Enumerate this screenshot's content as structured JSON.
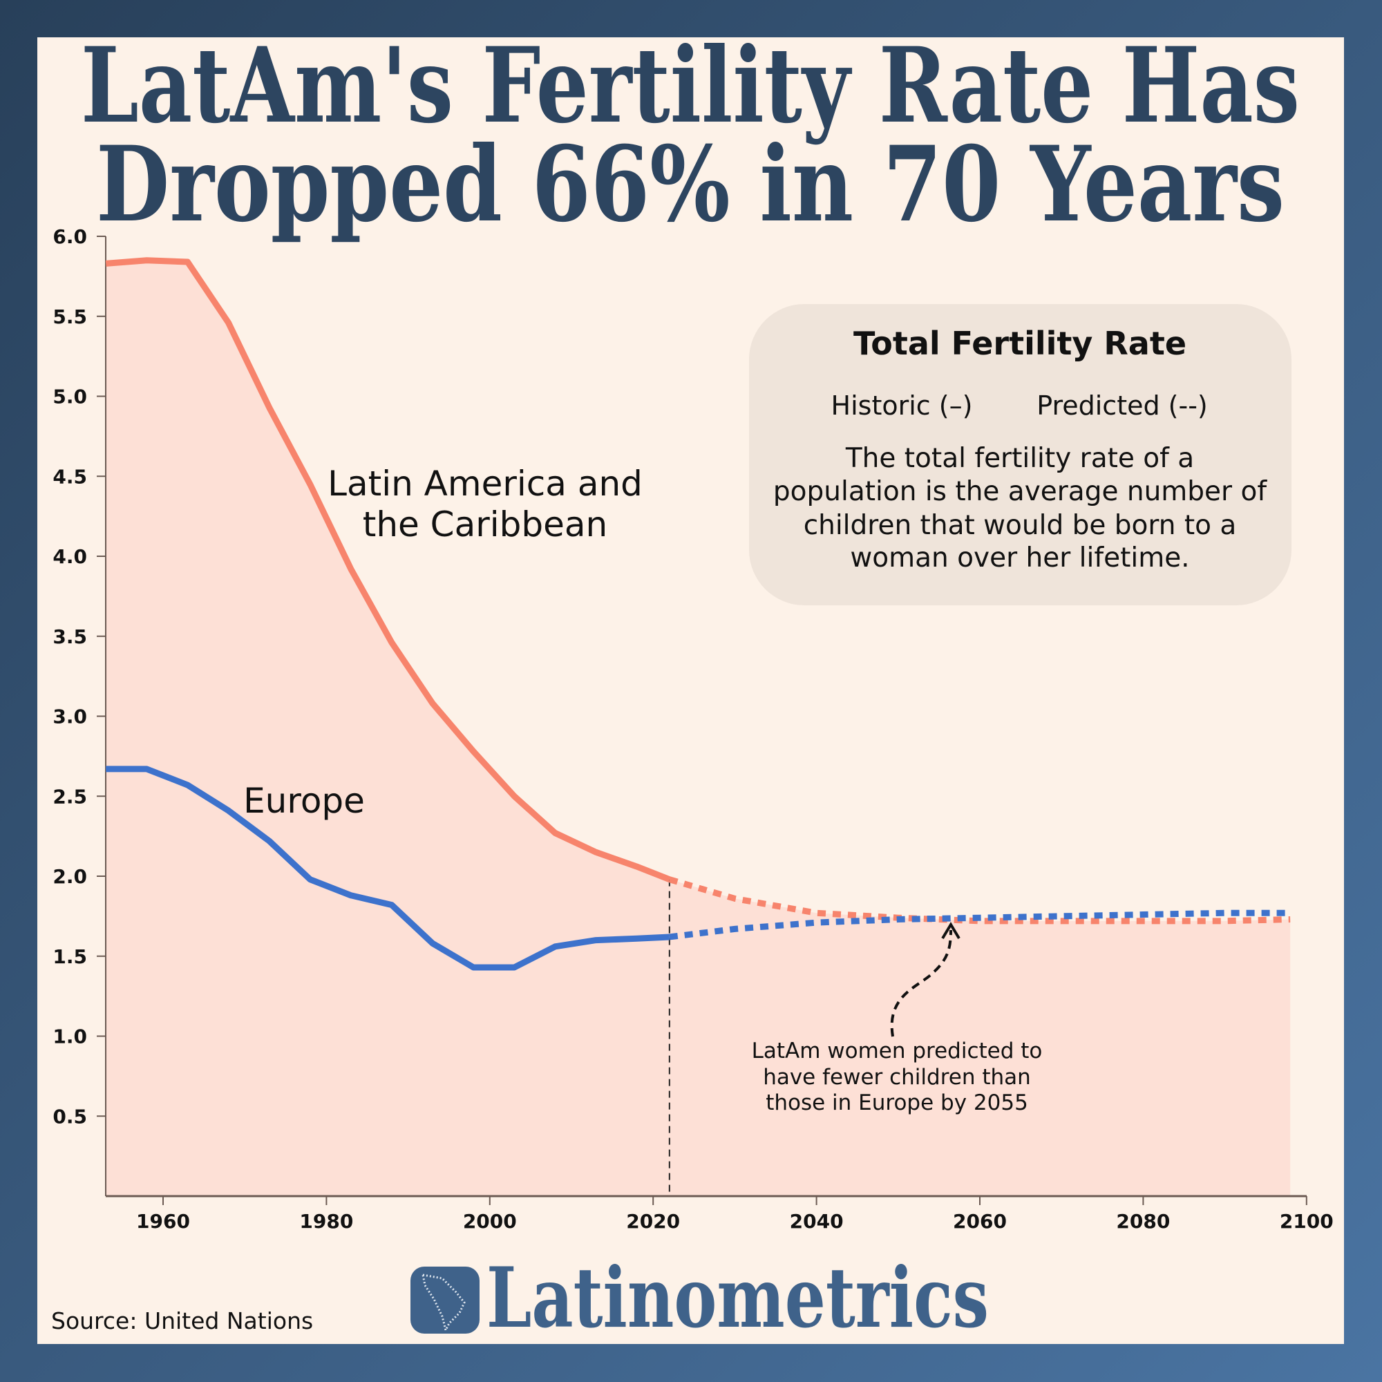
{
  "title": {
    "line1": "LatAm's Fertility Rate Has",
    "line2": "Dropped 66% in 70 Years"
  },
  "legend": {
    "heading": "Total Fertility Rate",
    "historic": "Historic (–)",
    "predicted": "Predicted (--)",
    "description": [
      "The total fertility rate of a",
      "population is the average number of",
      "children that would be born to a",
      "woman over her lifetime."
    ]
  },
  "annotation": {
    "lines": [
      "LatAm women predicted to",
      "have fewer children than",
      "those in Europe by 2055"
    ],
    "icon": "curved-arrow-icon"
  },
  "source": "Source: United Nations",
  "brand": {
    "name": "Latinometrics",
    "icon": "latin-america-map-icon"
  },
  "colors": {
    "latam": "#f7846c",
    "latam_fill": "#fde0d6",
    "europe": "#3d72cc",
    "title": "#2d4560",
    "panel": "#fdf2e8",
    "legend_bg": "#efe4da"
  },
  "chart_data": {
    "type": "line",
    "xlim": [
      1953,
      2100
    ],
    "ylim": [
      0,
      6
    ],
    "x_ticks": [
      "1960",
      "1980",
      "2000",
      "2020",
      "2040",
      "2060",
      "2080",
      "2100"
    ],
    "y_ticks": [
      "0.5",
      "1.0",
      "1.5",
      "2.0",
      "2.5",
      "3.0",
      "3.5",
      "4.0",
      "4.5",
      "5.0",
      "5.5",
      "6.0"
    ],
    "divider_year": 2022,
    "series": [
      {
        "name": "Latin America and the Caribbean",
        "label_lines": [
          "Latin America and",
          "the Caribbean"
        ],
        "historic": {
          "x": [
            1953,
            1958,
            1963,
            1968,
            1973,
            1978,
            1983,
            1988,
            1993,
            1998,
            2003,
            2008,
            2013,
            2018,
            2022
          ],
          "y": [
            5.83,
            5.85,
            5.84,
            5.46,
            4.93,
            4.45,
            3.92,
            3.46,
            3.08,
            2.78,
            2.5,
            2.27,
            2.15,
            2.06,
            1.98
          ]
        },
        "predicted": {
          "x": [
            2022,
            2030,
            2040,
            2050,
            2060,
            2070,
            2080,
            2090,
            2098
          ],
          "y": [
            1.98,
            1.86,
            1.77,
            1.74,
            1.72,
            1.72,
            1.72,
            1.72,
            1.73
          ]
        }
      },
      {
        "name": "Europe",
        "label_lines": [
          "Europe"
        ],
        "historic": {
          "x": [
            1953,
            1958,
            1963,
            1968,
            1973,
            1978,
            1983,
            1988,
            1993,
            1998,
            2003,
            2008,
            2013,
            2018,
            2022
          ],
          "y": [
            2.67,
            2.67,
            2.57,
            2.41,
            2.22,
            1.98,
            1.88,
            1.82,
            1.58,
            1.43,
            1.43,
            1.56,
            1.6,
            1.61,
            1.62
          ]
        },
        "predicted": {
          "x": [
            2022,
            2030,
            2040,
            2050,
            2060,
            2070,
            2080,
            2090,
            2098
          ],
          "y": [
            1.62,
            1.67,
            1.71,
            1.73,
            1.74,
            1.75,
            1.76,
            1.77,
            1.77
          ]
        }
      }
    ]
  }
}
